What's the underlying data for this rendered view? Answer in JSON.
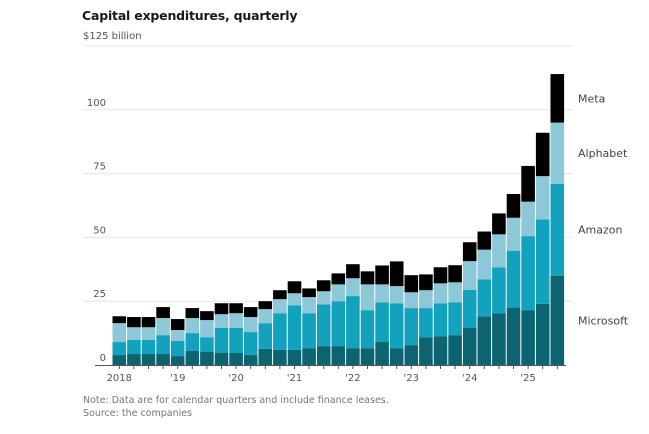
{
  "chart_data": {
    "type": "bar",
    "stacked": true,
    "title": "Capital expenditures, quarterly",
    "unit_label": "$125 billion",
    "xlabel": "",
    "ylabel": "",
    "ylim": [
      0,
      125
    ],
    "yticks": [
      0,
      25,
      50,
      75,
      100
    ],
    "ytick_labels": [
      "0",
      "25",
      "50",
      "75",
      "100"
    ],
    "grid": true,
    "legend": "right, inline labels",
    "xtick_labels": [
      {
        "index": 0,
        "label": "2018"
      },
      {
        "index": 4,
        "label": "'19"
      },
      {
        "index": 8,
        "label": "'20"
      },
      {
        "index": 12,
        "label": "'21"
      },
      {
        "index": 16,
        "label": "'22"
      },
      {
        "index": 20,
        "label": "'23"
      },
      {
        "index": 24,
        "label": "'24"
      },
      {
        "index": 28,
        "label": "'25"
      }
    ],
    "categories": [
      "2018 Q1",
      "2018 Q2",
      "2018 Q3",
      "2018 Q4",
      "2019 Q1",
      "2019 Q2",
      "2019 Q3",
      "2019 Q4",
      "2020 Q1",
      "2020 Q2",
      "2020 Q3",
      "2020 Q4",
      "2021 Q1",
      "2021 Q2",
      "2021 Q3",
      "2021 Q4",
      "2022 Q1",
      "2022 Q2",
      "2022 Q3",
      "2022 Q4",
      "2023 Q1",
      "2023 Q2",
      "2023 Q3",
      "2023 Q4",
      "2024 Q1",
      "2024 Q2",
      "2024 Q3",
      "2024 Q4",
      "2025 Q1",
      "2025 Q2",
      "2025 Q3"
    ],
    "series": [
      {
        "name": "Microsoft",
        "color": "#0b6470",
        "values": [
          3.9,
          4.3,
          4.3,
          4.3,
          3.5,
          5.5,
          5.1,
          4.7,
          4.7,
          3.9,
          6.3,
          5.9,
          5.9,
          6.6,
          7.4,
          7.4,
          6.6,
          6.6,
          9.0,
          6.6,
          7.8,
          10.9,
          11.3,
          11.7,
          14.5,
          19.1,
          20.3,
          22.5,
          21.5,
          24.0,
          35.0
        ]
      },
      {
        "name": "Amazon",
        "color": "#13a2bd",
        "values": [
          5.1,
          5.5,
          5.5,
          7.4,
          5.9,
          7.0,
          5.8,
          9.8,
          9.8,
          9.0,
          10.1,
          14.4,
          17.5,
          13.7,
          16.4,
          17.6,
          20.4,
          14.9,
          15.6,
          17.6,
          14.5,
          11.4,
          12.9,
          12.9,
          14.9,
          14.4,
          18.0,
          22.3,
          29.0,
          33.0,
          36.0
        ]
      },
      {
        "name": "Alphabet",
        "color": "#8cc8d8",
        "values": [
          7.4,
          5.0,
          5.0,
          6.7,
          4.3,
          5.9,
          6.7,
          5.4,
          5.8,
          5.9,
          5.5,
          5.5,
          4.7,
          6.3,
          5.1,
          6.6,
          7.0,
          10.1,
          7.0,
          6.7,
          6.2,
          7.0,
          7.8,
          7.8,
          11.3,
          11.7,
          12.9,
          12.9,
          13.5,
          17.0,
          24.0
        ]
      },
      {
        "name": "Meta",
        "color": "#000000",
        "values": [
          2.7,
          4.0,
          4.0,
          4.3,
          4.3,
          3.9,
          3.5,
          4.3,
          3.9,
          3.9,
          3.1,
          3.5,
          4.7,
          3.4,
          4.3,
          4.3,
          5.5,
          5.1,
          7.4,
          9.7,
          6.7,
          6.2,
          6.3,
          6.7,
          7.4,
          7.1,
          8.2,
          9.3,
          14.0,
          17.0,
          19.0
        ]
      }
    ]
  },
  "footer": {
    "note": "Note: Data are for calendar quarters and include finance leases.",
    "source": "Source: the companies"
  }
}
